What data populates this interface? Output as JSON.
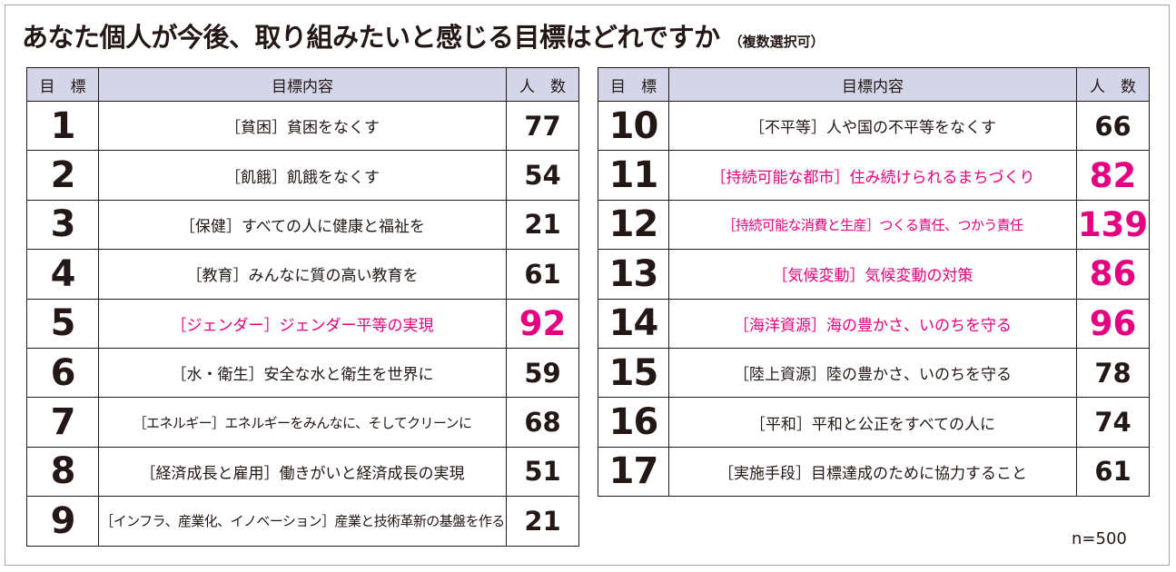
{
  "title": {
    "main": "あなた個人が今後、取り組みたいと感じる目標はどれですか",
    "sub": "（複数選択可）"
  },
  "headers": {
    "goal": "目　標",
    "content": "目標内容",
    "count": "人　数"
  },
  "left_table": [
    {
      "no": "1",
      "desc": "［貧困］貧困をなくす",
      "count": "77",
      "highlight": false
    },
    {
      "no": "2",
      "desc": "［飢餓］飢餓をなくす",
      "count": "54",
      "highlight": false
    },
    {
      "no": "3",
      "desc": "［保健］すべての人に健康と福祉を",
      "count": "21",
      "highlight": false
    },
    {
      "no": "4",
      "desc": "［教育］みんなに質の高い教育を",
      "count": "61",
      "highlight": false
    },
    {
      "no": "5",
      "desc": "［ジェンダー］ジェンダー平等の実現",
      "count": "92",
      "highlight": true
    },
    {
      "no": "6",
      "desc": "［水・衛生］安全な水と衛生を世界に",
      "count": "59",
      "highlight": false
    },
    {
      "no": "7",
      "desc": "［エネルギー］エネルギーをみんなに、そしてクリーンに",
      "count": "68",
      "highlight": false
    },
    {
      "no": "8",
      "desc": "［経済成長と雇用］働きがいと経済成長の実現",
      "count": "51",
      "highlight": false
    },
    {
      "no": "9",
      "desc": "［インフラ、産業化、イノベーション］産業と技術革新の基盤を作る",
      "count": "21",
      "highlight": false
    }
  ],
  "right_table": [
    {
      "no": "10",
      "desc": "［不平等］人や国の不平等をなくす",
      "count": "66",
      "highlight": false
    },
    {
      "no": "11",
      "desc": "［持続可能な都市］住み続けられるまちづくり",
      "count": "82",
      "highlight": true
    },
    {
      "no": "12",
      "desc": "［持続可能な消費と生産］つくる責任、つかう責任",
      "count": "139",
      "highlight": true
    },
    {
      "no": "13",
      "desc": "［気候変動］気候変動の対策",
      "count": "86",
      "highlight": true
    },
    {
      "no": "14",
      "desc": "［海洋資源］海の豊かさ、いのちを守る",
      "count": "96",
      "highlight": true
    },
    {
      "no": "15",
      "desc": "［陸上資源］陸の豊かさ、いのちを守る",
      "count": "78",
      "highlight": false
    },
    {
      "no": "16",
      "desc": "［平和］平和と公正をすべての人に",
      "count": "74",
      "highlight": false
    },
    {
      "no": "17",
      "desc": "［実施手段］目標達成のために協力すること",
      "count": "61",
      "highlight": false
    }
  ],
  "note": "n=500",
  "colors": {
    "highlight": "#e4007f",
    "header_bg": "#d4d5e8",
    "text": "#231815"
  }
}
